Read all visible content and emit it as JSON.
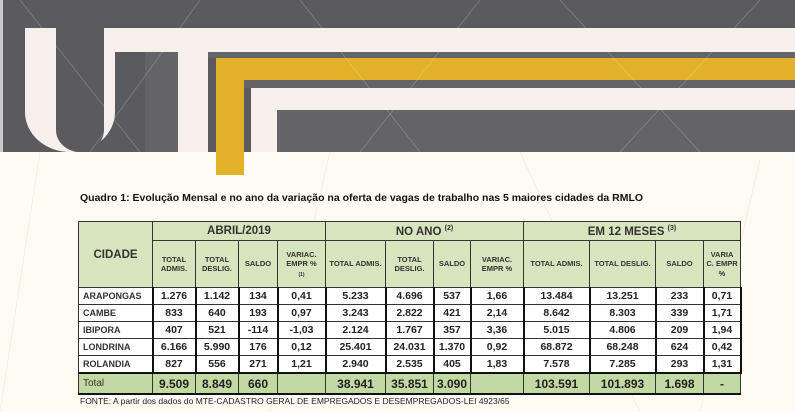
{
  "title": "Quadro 1: Evolução Mensal e no ano da variação na oferta de vagas de trabalho nas 5 maiores cidades da RMLO",
  "table": {
    "city_header": "CIDADE",
    "groups": [
      {
        "label": "ABRIL/2019",
        "note": ""
      },
      {
        "label": "NO ANO",
        "note": "(2)"
      },
      {
        "label": "EM 12 MESES",
        "note": "(3)"
      }
    ],
    "subheaders": [
      [
        "TOTAL ADMIS.",
        "TOTAL DESLIG.",
        "SALDO",
        "VARIAC. EMPR %",
        "(1)"
      ],
      [
        "TOTAL ADMIS.",
        "TOTAL DESLIG.",
        "SALDO",
        "VARIAC. EMPR %",
        ""
      ],
      [
        "TOTAL ADMIS.",
        "TOTAL DESLIG.",
        "SALDO",
        "VARIA C. EMPR %",
        ""
      ]
    ],
    "rows": [
      {
        "city": "ARAPONGAS",
        "values": [
          "1.276",
          "1.142",
          "134",
          "0,41",
          "5.233",
          "4.696",
          "537",
          "1,66",
          "13.484",
          "13.251",
          "233",
          "0,71"
        ]
      },
      {
        "city": "CAMBE",
        "values": [
          "833",
          "640",
          "193",
          "0,97",
          "3.243",
          "2.822",
          "421",
          "2,14",
          "8.642",
          "8.303",
          "339",
          "1,71"
        ]
      },
      {
        "city": "IBIPORA",
        "values": [
          "407",
          "521",
          "-114",
          "-1,03",
          "2.124",
          "1.767",
          "357",
          "3,36",
          "5.015",
          "4.806",
          "209",
          "1,94"
        ]
      },
      {
        "city": "LONDRINA",
        "values": [
          "6.166",
          "5.990",
          "176",
          "0,12",
          "25.401",
          "24.031",
          "1.370",
          "0,92",
          "68.872",
          "68.248",
          "624",
          "0,42"
        ]
      },
      {
        "city": "ROLANDIA",
        "values": [
          "827",
          "556",
          "271",
          "1,21",
          "2.940",
          "2.535",
          "405",
          "1,83",
          "7.578",
          "7.285",
          "293",
          "1,31"
        ]
      }
    ],
    "total": {
      "label": "Total",
      "values": [
        "9.509",
        "8.849",
        "660",
        "",
        "38.941",
        "35.851",
        "3.090",
        "",
        "103.591",
        "101.893",
        "1.698",
        "-"
      ]
    }
  },
  "source": "FONTE: A partir dos dados do MTE-CADASTRO GERAL DE EMPREGADOS E DESEMPREGADOS-LEI 4923/65",
  "colors": {
    "banner": "#5b5b5f",
    "accent": "#e3b02a",
    "header_bg": "#d7e4bd",
    "total_bg": "#c3d9a3"
  }
}
